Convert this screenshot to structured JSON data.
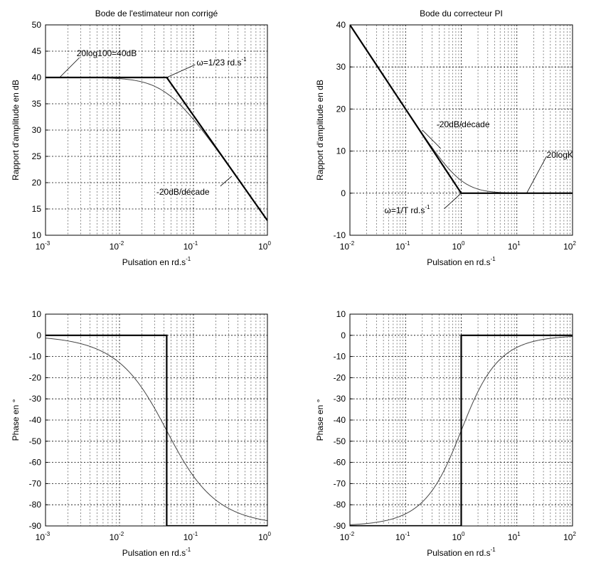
{
  "chart_data": [
    {
      "type": "line",
      "title": "Bode de l'estimateur non corrigé",
      "xlabel": "Pulsation en rd.s",
      "xlabel_exp": "-1",
      "ylabel": "Rapport d'amplitude en dB",
      "xscale": "log",
      "xlim": [
        0.001,
        1
      ],
      "ylim": [
        10,
        50
      ],
      "grid": true,
      "xticks": [
        {
          "base": "10",
          "exp": "-3"
        },
        {
          "base": "10",
          "exp": "-2"
        },
        {
          "base": "10",
          "exp": "-1"
        },
        {
          "base": "10",
          "exp": "0"
        }
      ],
      "yticks": [
        10,
        15,
        20,
        25,
        30,
        35,
        40,
        45,
        50
      ],
      "series": [
        {
          "style": "asymptote",
          "x": [
            0.001,
            0.0435,
            1
          ],
          "y": [
            40,
            40,
            12.8
          ]
        },
        {
          "style": "exact",
          "formula": "40 - 10*log10(1 + (23*w)^2)"
        }
      ],
      "annotations": [
        {
          "text": "20log100=40dB",
          "x": 0.00155,
          "y": 40
        },
        {
          "text": "ω=1/23 rd.s",
          "exp": "-1",
          "x": 0.0435,
          "y": 40
        },
        {
          "text": "-20dB/décade",
          "x": 0.36,
          "y": 21.5
        }
      ]
    },
    {
      "type": "line",
      "title": "Bode du correcteur PI",
      "xlabel": "Pulsation en rd.s",
      "xlabel_exp": "-1",
      "ylabel": "Rapport d'amplitude en dB",
      "xscale": "log",
      "xlim": [
        0.01,
        100
      ],
      "ylim": [
        -10,
        40
      ],
      "grid": true,
      "xticks": [
        {
          "base": "10",
          "exp": "-2"
        },
        {
          "base": "10",
          "exp": "-1"
        },
        {
          "base": "10",
          "exp": "0"
        },
        {
          "base": "10",
          "exp": "1"
        },
        {
          "base": "10",
          "exp": "2"
        }
      ],
      "yticks": [
        -10,
        0,
        10,
        20,
        30,
        40
      ],
      "series": [
        {
          "style": "asymptote",
          "x": [
            0.01,
            1,
            100
          ],
          "y": [
            40,
            0,
            0
          ]
        },
        {
          "style": "exact",
          "formula": "10*log10(1 + 1/w^2)"
        }
      ],
      "annotations": [
        {
          "text": "-20dB/décade",
          "x": 0.2,
          "y": 15
        },
        {
          "text": "20logK",
          "x": 15,
          "y": 0
        },
        {
          "text": "ω=1/T rd.s",
          "exp": "-1",
          "x": 1,
          "y": 0
        }
      ]
    },
    {
      "type": "line",
      "title": "",
      "xlabel": "Pulsation en rd.s",
      "xlabel_exp": "-1",
      "ylabel": "Phase en °",
      "xscale": "log",
      "xlim": [
        0.001,
        1
      ],
      "ylim": [
        -90,
        10
      ],
      "grid": true,
      "xticks": [
        {
          "base": "10",
          "exp": "-3"
        },
        {
          "base": "10",
          "exp": "-2"
        },
        {
          "base": "10",
          "exp": "-1"
        },
        {
          "base": "10",
          "exp": "0"
        }
      ],
      "yticks": [
        -90,
        -80,
        -70,
        -60,
        -50,
        -40,
        -30,
        -20,
        -10,
        0,
        10
      ],
      "series": [
        {
          "style": "asymptote",
          "x": [
            0.001,
            0.0435,
            0.0435,
            1
          ],
          "y": [
            0,
            0,
            -90,
            -90
          ]
        },
        {
          "style": "exact",
          "formula": "-atan(23*w) in degrees"
        }
      ]
    },
    {
      "type": "line",
      "title": "",
      "xlabel": "Pulsation en rd.s",
      "xlabel_exp": "-1",
      "ylabel": "Phase en °",
      "xscale": "log",
      "xlim": [
        0.01,
        100
      ],
      "ylim": [
        -90,
        10
      ],
      "grid": true,
      "xticks": [
        {
          "base": "10",
          "exp": "-2"
        },
        {
          "base": "10",
          "exp": "-1"
        },
        {
          "base": "10",
          "exp": "0"
        },
        {
          "base": "10",
          "exp": "1"
        },
        {
          "base": "10",
          "exp": "2"
        }
      ],
      "yticks": [
        -90,
        -80,
        -70,
        -60,
        -50,
        -40,
        -30,
        -20,
        -10,
        0,
        10
      ],
      "series": [
        {
          "style": "asymptote",
          "x": [
            0.01,
            1,
            1,
            100
          ],
          "y": [
            -90,
            -90,
            0,
            0
          ]
        },
        {
          "style": "exact",
          "formula": "-90 + atan(w) in degrees"
        }
      ]
    }
  ]
}
